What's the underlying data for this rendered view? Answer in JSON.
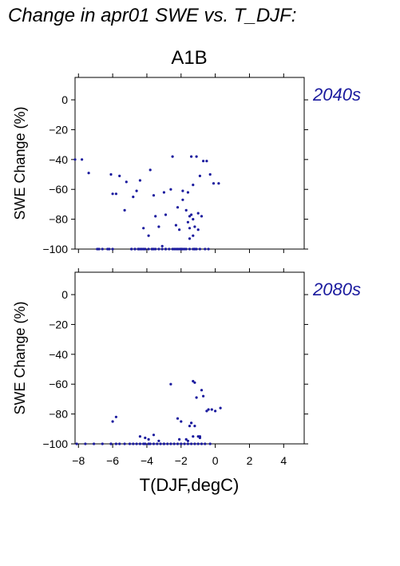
{
  "figure_title": "Change in apr01 SWE vs. T_DJF:",
  "scenario": "A1B",
  "xlabel": "T(DJF,degC)",
  "colors": {
    "points": "#1a1a9e",
    "period_label": "#1a1a9e",
    "axis": "#000000"
  },
  "chart_data": [
    {
      "type": "scatter",
      "title": "2040s",
      "ylabel": "SWE Change (%)",
      "xlim": [
        -8.2,
        5.2
      ],
      "ylim": [
        -100,
        15
      ],
      "xticks": [
        -8,
        -6,
        -4,
        -2,
        0,
        2,
        4
      ],
      "yticks": [
        0,
        -20,
        -40,
        -60,
        -80,
        -100
      ],
      "xtick_labels_shown": false,
      "x": [
        -8.2,
        -7.8,
        -7.4,
        -6.8,
        -6.1,
        -6.0,
        -5.6,
        -5.2,
        -5.3,
        -4.9,
        -4.6,
        -4.7,
        -4.4,
        -4.4,
        -3.8,
        -3.7,
        -3.6,
        -3.5,
        -3.0,
        -2.9,
        -2.5,
        -2.3,
        -2.1,
        -2.0,
        -1.9,
        -1.7,
        -1.6,
        -1.4,
        -1.3,
        -1.2,
        -1.2,
        -1.1,
        -0.9,
        -0.7,
        -0.5,
        -0.3,
        -0.1,
        0.2,
        -1.9,
        -1.8,
        -1.5,
        -1.4,
        -1.3,
        -1.2,
        -1.0,
        -0.8,
        -1.3,
        -1.0,
        -2.6,
        -2.4,
        -2.2,
        -1.6,
        -4.2,
        -4.5,
        -3.1,
        -2.0,
        -6.3,
        -5.8,
        -6.0,
        -4.8,
        -4.2,
        -1.5,
        -2.9,
        -3.3,
        -2.2,
        -1.5,
        -3.9,
        -3.6,
        -2.0,
        -6.9,
        -6.6,
        -6.2,
        -4.9,
        -4.7,
        -4.5,
        -4.3,
        -4.1,
        -3.9,
        -3.7,
        -3.5,
        -3.3,
        -3.1,
        -2.9,
        -2.7,
        -2.5,
        -2.3,
        -2.1,
        -1.9,
        -1.7,
        -1.5,
        -1.3,
        -1.1,
        -0.9,
        -0.6,
        -0.4
      ],
      "y": [
        -40,
        -40,
        -49,
        -100,
        -50,
        -63,
        -51,
        -55,
        -74,
        -100,
        -61,
        -100,
        -54,
        -100,
        -47,
        -100,
        -64,
        -78,
        -62,
        -100,
        -38,
        -84,
        -87,
        -100,
        -67,
        -74,
        -82,
        -38,
        -57,
        -85,
        -100,
        -38,
        -51,
        -41,
        -41,
        -50,
        -56,
        -56,
        -61,
        -100,
        -78,
        -77,
        -80,
        -100,
        -76,
        -78,
        -91,
        -87,
        -60,
        -100,
        -72,
        -62,
        -86,
        -100,
        -98,
        -100,
        -100,
        -63,
        -100,
        -65,
        -100,
        -86,
        -77,
        -85,
        -100,
        -93,
        -91,
        -100,
        -100,
        -100,
        -100,
        -100,
        -100,
        -100,
        -100,
        -100,
        -100,
        -100,
        -100,
        -100,
        -100,
        -100,
        -100,
        -100,
        -100,
        -100,
        -100,
        -100,
        -100,
        -100,
        -100,
        -100,
        -100,
        -100,
        -100
      ]
    },
    {
      "type": "scatter",
      "title": "2080s",
      "ylabel": "SWE Change (%)",
      "xlim": [
        -8.2,
        5.2
      ],
      "ylim": [
        -100,
        15
      ],
      "xticks": [
        -8,
        -6,
        -4,
        -2,
        0,
        2,
        4
      ],
      "yticks": [
        0,
        -20,
        -40,
        -60,
        -80,
        -100
      ],
      "xtick_labels_shown": true,
      "x": [
        -8.1,
        -7.6,
        -7.1,
        -6.6,
        -6.1,
        -6.0,
        -5.8,
        -5.6,
        -5.3,
        -5.0,
        -4.8,
        -4.6,
        -4.4,
        -4.2,
        -4.1,
        -3.9,
        -3.8,
        -3.6,
        -3.4,
        -3.2,
        -3.0,
        -2.8,
        -2.6,
        -2.4,
        -2.2,
        -2.0,
        -1.8,
        -1.6,
        -1.4,
        -1.2,
        -1.0,
        -0.8,
        -0.6,
        -0.3,
        -6.1,
        -5.8,
        -3.0,
        -2.6,
        -2.2,
        -2.0,
        -1.5,
        -1.3,
        -1.2,
        -1.1,
        -1.4,
        -0.8,
        -0.7,
        -0.5,
        -0.4,
        -0.2,
        0.0,
        0.3,
        -1.4,
        -1.2,
        -1.0,
        -0.9,
        -1.6,
        -1.3,
        -2.1,
        -4.4,
        -4.1,
        -3.9,
        -3.6,
        -3.3,
        -1.7,
        -0.9
      ],
      "y": [
        -100,
        -100,
        -100,
        -100,
        -100,
        -85,
        -82,
        -100,
        -100,
        -100,
        -100,
        -100,
        -100,
        -100,
        -100,
        -100,
        -100,
        -100,
        -100,
        -100,
        -100,
        -100,
        -100,
        -100,
        -100,
        -100,
        -100,
        -100,
        -100,
        -100,
        -100,
        -100,
        -100,
        -100,
        -100,
        -100,
        -100,
        -60,
        -83,
        -85,
        -88,
        -58,
        -59,
        -69,
        -86,
        -64,
        -68,
        -78,
        -77,
        -77,
        -78,
        -76,
        -86,
        -88,
        -95,
        -96,
        -98,
        -95,
        -97,
        -95,
        -96,
        -97,
        -94,
        -98,
        -97,
        -95
      ]
    }
  ]
}
